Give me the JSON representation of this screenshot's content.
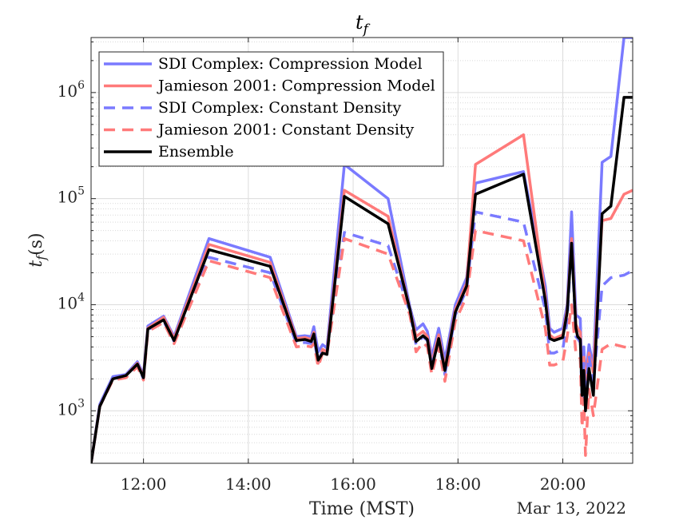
{
  "chart_data": {
    "type": "line",
    "title": "t",
    "title_subscript": "f",
    "xlabel": "Time (MST)",
    "ylabel_main": "t",
    "ylabel_sub": "f",
    "ylabel_unit": "(s)",
    "date_label": "Mar 13, 2022",
    "yscale": "log",
    "xlim": [
      "11:00",
      "21:20"
    ],
    "ylim": [
      320,
      3300000
    ],
    "x_ticks": [
      "12:00",
      "14:00",
      "16:00",
      "18:00",
      "20:00"
    ],
    "y_ticks": [
      {
        "base": "10",
        "exp": "3"
      },
      {
        "base": "10",
        "exp": "4"
      },
      {
        "base": "10",
        "exp": "5"
      },
      {
        "base": "10",
        "exp": "6"
      }
    ],
    "grid": true,
    "legend_position": "top-left",
    "series": [
      {
        "name": "SDI Complex: Compression Model",
        "color": "#7a7aff",
        "style": "solid",
        "x": [
          "11:00",
          "11:10",
          "11:25",
          "11:40",
          "11:53",
          "12:00",
          "12:05",
          "12:23",
          "12:35",
          "13:15",
          "14:25",
          "14:55",
          "15:05",
          "15:12",
          "15:15",
          "15:20",
          "15:25",
          "15:30",
          "15:50",
          "16:40",
          "17:05",
          "17:12",
          "17:20",
          "17:25",
          "17:30",
          "17:38",
          "17:45",
          "17:57",
          "18:10",
          "18:20",
          "19:15",
          "19:40",
          "19:45",
          "19:50",
          "20:00",
          "20:05",
          "20:10",
          "20:15",
          "20:17",
          "20:20",
          "20:22",
          "20:24",
          "20:26",
          "20:30",
          "20:35",
          "20:45",
          "20:55",
          "21:10",
          "21:20"
        ],
        "y": [
          320,
          1150,
          2100,
          2200,
          2900,
          2200,
          6300,
          7800,
          5000,
          42000,
          28000,
          5000,
          5100,
          5000,
          6200,
          3600,
          4200,
          3900,
          210000,
          100000,
          9500,
          5800,
          6600,
          5600,
          3200,
          6000,
          3000,
          10000,
          18000,
          140000,
          180000,
          15000,
          6000,
          5500,
          6000,
          10000,
          75000,
          8000,
          7800,
          7400,
          1800,
          4000,
          2000,
          4200,
          2600,
          220000,
          250000,
          3300000,
          3300000
        ]
      },
      {
        "name": "Jamieson 2001: Compression Model",
        "color": "#ff7a7a",
        "style": "solid",
        "x": [
          "11:00",
          "11:10",
          "11:25",
          "11:40",
          "11:53",
          "12:00",
          "12:05",
          "12:23",
          "12:35",
          "13:15",
          "14:25",
          "14:55",
          "15:05",
          "15:12",
          "15:15",
          "15:20",
          "15:25",
          "15:30",
          "15:50",
          "16:40",
          "17:05",
          "17:12",
          "17:20",
          "17:25",
          "17:30",
          "17:38",
          "17:45",
          "17:57",
          "18:10",
          "18:20",
          "19:15",
          "19:40",
          "19:45",
          "19:50",
          "20:00",
          "20:05",
          "20:10",
          "20:15",
          "20:17",
          "20:20",
          "20:22",
          "20:24",
          "20:26",
          "20:30",
          "20:35",
          "20:45",
          "20:55",
          "21:10",
          "21:20"
        ],
        "y": [
          320,
          1100,
          2000,
          2150,
          2800,
          2100,
          6000,
          7600,
          4800,
          37000,
          25000,
          4800,
          4900,
          4700,
          5500,
          2800,
          3800,
          3600,
          120000,
          68000,
          9000,
          5000,
          5600,
          5000,
          2800,
          5200,
          2500,
          9000,
          16000,
          210000,
          400000,
          12000,
          5200,
          4800,
          5200,
          9000,
          42000,
          6500,
          6000,
          5500,
          1500,
          3200,
          1800,
          3500,
          2300,
          62000,
          65000,
          110000,
          120000
        ]
      },
      {
        "name": "SDI Complex: Constant Density",
        "color": "#7a7aff",
        "style": "dashed",
        "x": [
          "11:00",
          "11:10",
          "11:25",
          "11:40",
          "11:53",
          "12:00",
          "12:05",
          "12:23",
          "12:35",
          "13:15",
          "14:25",
          "14:55",
          "15:05",
          "15:12",
          "15:15",
          "15:20",
          "15:25",
          "15:30",
          "15:50",
          "16:40",
          "17:05",
          "17:12",
          "17:20",
          "17:25",
          "17:30",
          "17:38",
          "17:45",
          "17:57",
          "18:10",
          "18:20",
          "19:15",
          "19:40",
          "19:45",
          "19:50",
          "20:00",
          "20:05",
          "20:10",
          "20:15",
          "20:17",
          "20:20",
          "20:22",
          "20:24",
          "20:26",
          "20:30",
          "20:35",
          "20:45",
          "20:55",
          "21:10",
          "21:20"
        ],
        "y": [
          320,
          1100,
          2000,
          2100,
          2700,
          2000,
          5800,
          7000,
          4500,
          28000,
          20000,
          4300,
          4400,
          4300,
          4800,
          2900,
          3700,
          3600,
          48000,
          36000,
          8500,
          4200,
          5000,
          4600,
          2700,
          4600,
          2200,
          8000,
          14000,
          75000,
          60000,
          9000,
          3500,
          3500,
          3800,
          7000,
          40000,
          5000,
          4800,
          4400,
          1300,
          2800,
          1500,
          3300,
          1800,
          15000,
          18000,
          19000,
          21000
        ]
      },
      {
        "name": "Jamieson 2001: Constant Density",
        "color": "#ff7a7a",
        "style": "dashed",
        "x": [
          "11:00",
          "11:10",
          "11:25",
          "11:40",
          "11:53",
          "12:00",
          "12:05",
          "12:23",
          "12:35",
          "13:15",
          "14:25",
          "14:55",
          "15:05",
          "15:12",
          "15:15",
          "15:20",
          "15:25",
          "15:30",
          "15:50",
          "16:40",
          "17:05",
          "17:12",
          "17:20",
          "17:25",
          "17:30",
          "17:38",
          "17:45",
          "17:57",
          "18:10",
          "18:20",
          "19:15",
          "19:40",
          "19:45",
          "19:50",
          "20:00",
          "20:05",
          "20:10",
          "20:15",
          "20:17",
          "20:20",
          "20:22",
          "20:24",
          "20:26",
          "20:30",
          "20:35",
          "20:45",
          "20:55",
          "21:10",
          "21:20"
        ],
        "y": [
          320,
          1100,
          1950,
          2050,
          2600,
          1950,
          5600,
          6800,
          4300,
          26000,
          18000,
          4000,
          4100,
          4000,
          4300,
          2600,
          3500,
          3400,
          42000,
          30000,
          8000,
          3600,
          4400,
          4000,
          2200,
          4000,
          1900,
          7000,
          12000,
          50000,
          40000,
          6000,
          2700,
          2700,
          2900,
          5000,
          10000,
          3500,
          3300,
          3100,
          700,
          1300,
          380,
          1600,
          900,
          3800,
          4300,
          4000,
          3900
        ]
      },
      {
        "name": "Ensemble",
        "color": "#000000",
        "style": "solid",
        "x": [
          "11:00",
          "11:10",
          "11:25",
          "11:40",
          "11:53",
          "12:00",
          "12:05",
          "12:23",
          "12:35",
          "13:15",
          "14:25",
          "14:55",
          "15:05",
          "15:12",
          "15:15",
          "15:20",
          "15:25",
          "15:30",
          "15:50",
          "16:40",
          "17:05",
          "17:12",
          "17:20",
          "17:25",
          "17:30",
          "17:38",
          "17:45",
          "17:57",
          "18:10",
          "18:20",
          "19:15",
          "19:40",
          "19:45",
          "19:50",
          "20:00",
          "20:05",
          "20:10",
          "20:15",
          "20:17",
          "20:20",
          "20:22",
          "20:24",
          "20:26",
          "20:30",
          "20:35",
          "20:45",
          "20:55",
          "21:10",
          "21:20"
        ],
        "y": [
          320,
          1100,
          2000,
          2150,
          2750,
          2050,
          5900,
          7200,
          4600,
          33000,
          23000,
          4600,
          4700,
          4500,
          5300,
          3000,
          3500,
          3400,
          105000,
          58000,
          9000,
          4500,
          5100,
          4700,
          2500,
          4800,
          2400,
          8500,
          15000,
          110000,
          170000,
          11000,
          4800,
          4600,
          4900,
          8500,
          38000,
          6000,
          5000,
          4700,
          1400,
          2400,
          1000,
          2500,
          1400,
          72000,
          85000,
          900000,
          900000
        ]
      }
    ]
  }
}
